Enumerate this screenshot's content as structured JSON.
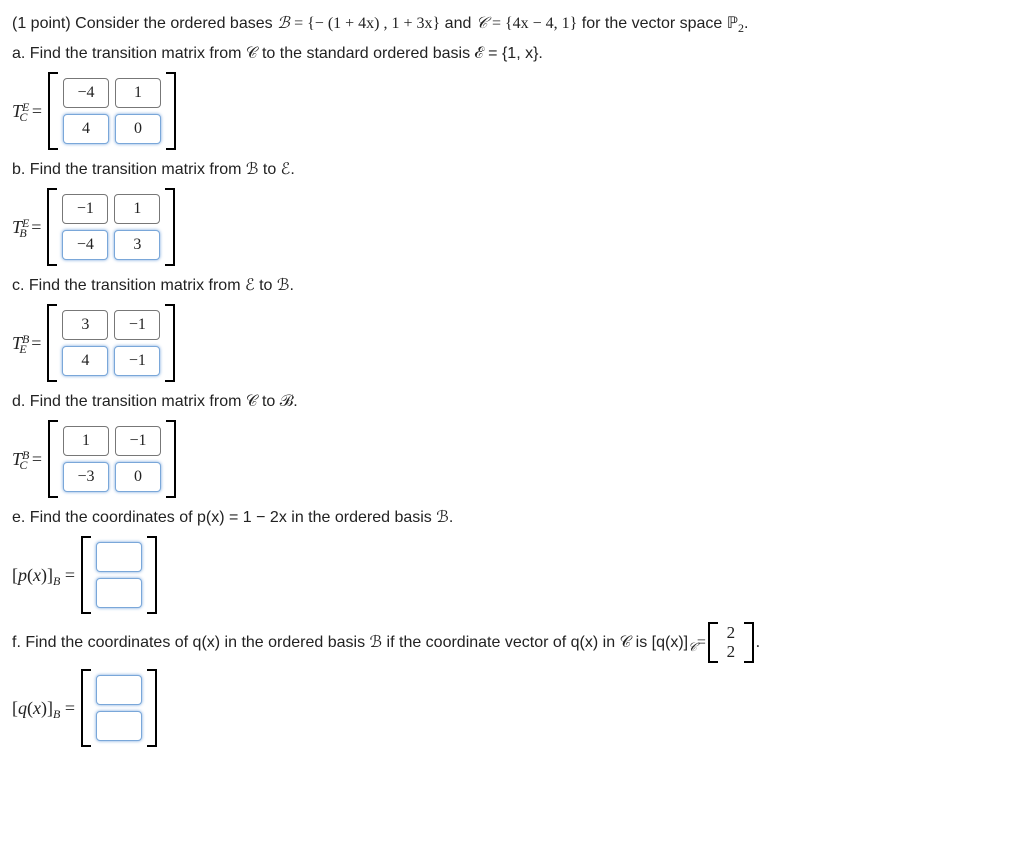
{
  "intro": {
    "points": "(1 point)",
    "text1": "Consider the ordered bases ",
    "B_label": "ℬ",
    "eq": " = ",
    "B_set": "{− (1 + 4x) , 1 + 3x}",
    "and": " and ",
    "C_label": "𝒞",
    "C_set": " = {4x − 4, 1}",
    "tail": " for the vector space ",
    "space": "ℙ",
    "space_sub": "2",
    "period": "."
  },
  "parts": {
    "a": {
      "prompt": "a. Find the transition matrix from 𝒞 to the standard ordered basis ℰ = {1, x}.",
      "lhs_sup": "E",
      "lhs_sub": "C",
      "cells": [
        "−4",
        "1",
        "4",
        "0"
      ],
      "highlight": [
        false,
        false,
        true,
        true
      ]
    },
    "b": {
      "prompt": "b. Find the transition matrix from ℬ to ℰ.",
      "lhs_sup": "E",
      "lhs_sub": "B",
      "cells": [
        "−1",
        "1",
        "−4",
        "3"
      ],
      "highlight": [
        false,
        false,
        true,
        true
      ]
    },
    "c": {
      "prompt": "c. Find the transition matrix from ℰ to ℬ.",
      "lhs_sup": "B",
      "lhs_sub": "E",
      "cells": [
        "3",
        "−1",
        "4",
        "−1"
      ],
      "highlight": [
        false,
        false,
        true,
        true
      ]
    },
    "d": {
      "prompt": "d. Find the transition matrix from 𝒞 to ℬ.",
      "lhs_sup": "B",
      "lhs_sub": "C",
      "cells": [
        "1",
        "−1",
        "−3",
        "0"
      ],
      "highlight": [
        false,
        false,
        true,
        true
      ]
    },
    "e": {
      "prompt": "e. Find the coordinates of p(x) = 1 − 2x in the ordered basis ℬ.",
      "lhs_html": "[p(x)]",
      "lhs_sub_only": "B",
      "cells": [
        "",
        ""
      ],
      "highlight": [
        true,
        true
      ]
    },
    "f": {
      "prompt_pre": "f. Find the coordinates of q(x) in the ordered basis ℬ if the coordinate vector of q(x) in 𝒞 is [q(x)]",
      "prompt_sub": "𝒞",
      "prompt_eq": " = ",
      "vec": [
        "2",
        "2"
      ],
      "period": ".",
      "lhs_html": "[q(x)]",
      "lhs_sub_only": "B",
      "cells": [
        "",
        ""
      ],
      "highlight": [
        true,
        true
      ]
    }
  },
  "style": {
    "box_border": "#777777",
    "highlight_border": "#7aa7d9",
    "text_color": "#222222",
    "background": "#ffffff"
  }
}
